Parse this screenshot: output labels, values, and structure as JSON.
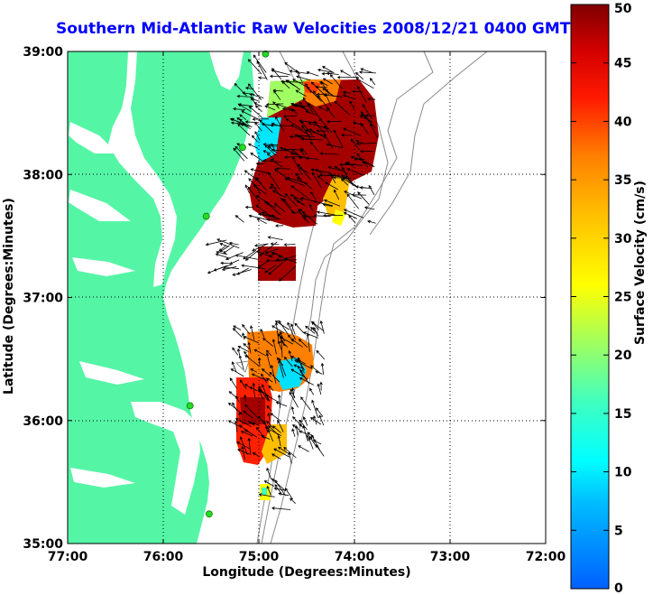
{
  "title": "Southern Mid-Atlantic Raw Velocities 2008/12/21 0400 GMT",
  "xlabel": "Longitude (Degrees:Minutes)",
  "ylabel": "Latitude (Degrees:Minutes)",
  "colorbar": {
    "label": "Surface Velocity (cm/s)",
    "min": 0,
    "max": 50,
    "ticks": [
      "0",
      "5",
      "10",
      "15",
      "20",
      "25",
      "30",
      "35",
      "40",
      "45",
      "50"
    ]
  },
  "colors": {
    "land": "#55f5a6",
    "title": "#0000ff",
    "station": "#22dd22",
    "bathymetry": "#8a8a8a"
  },
  "chart_data": {
    "type": "map",
    "xlim": [
      -77,
      -72
    ],
    "ylim": [
      35,
      39
    ],
    "grid": true,
    "x_ticks": [
      {
        "value": -77,
        "label": "77:00"
      },
      {
        "value": -76,
        "label": "76:00"
      },
      {
        "value": -75,
        "label": "75:00"
      },
      {
        "value": -74,
        "label": "74:00"
      },
      {
        "value": -73,
        "label": "73:00"
      },
      {
        "value": -72,
        "label": "72:00"
      }
    ],
    "y_ticks": [
      {
        "value": 35,
        "label": "35:00"
      },
      {
        "value": 36,
        "label": "36:00"
      },
      {
        "value": 37,
        "label": "37:00"
      },
      {
        "value": 38,
        "label": "38:00"
      },
      {
        "value": 39,
        "label": "39:00"
      }
    ],
    "stations": [
      {
        "lon": -74.93,
        "lat": 38.98
      },
      {
        "lon": -75.17,
        "lat": 38.22
      },
      {
        "lon": -75.55,
        "lat": 37.66
      },
      {
        "lon": -75.72,
        "lat": 36.12
      },
      {
        "lon": -75.52,
        "lat": 35.24
      }
    ]
  }
}
